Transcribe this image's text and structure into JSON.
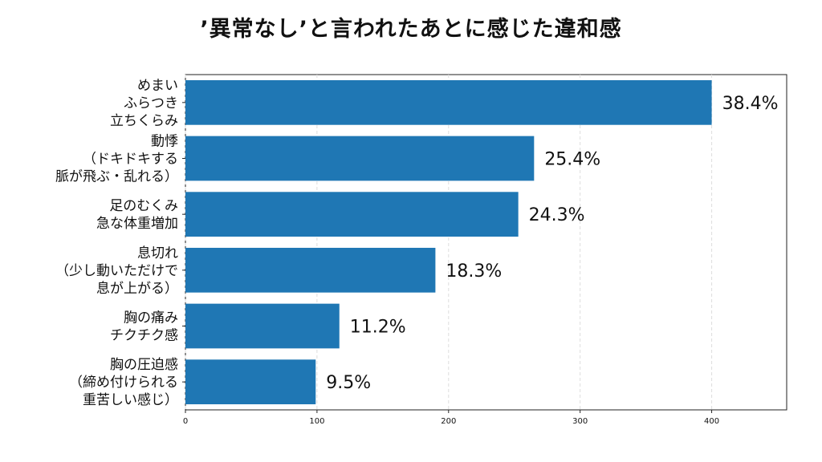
{
  "chart_data": {
    "type": "bar",
    "orientation": "horizontal",
    "title": "’異常なし’と言われたあとに感じた違和感",
    "categories": [
      [
        "めまい",
        "ふらつき",
        "立ちくらみ"
      ],
      [
        "動悸",
        "（ドキドキする",
        "脈が飛ぶ・乱れる）"
      ],
      [
        "足のむくみ",
        "急な体重増加"
      ],
      [
        "息切れ",
        "（少し動いただけで",
        "息が上がる）"
      ],
      [
        "胸の痛み",
        "チクチク感"
      ],
      [
        "胸の圧迫感",
        "（締め付けられる",
        "重苦しい感じ）"
      ]
    ],
    "values": [
      400,
      265,
      253,
      190,
      117,
      99
    ],
    "data_labels": [
      "38.4%",
      "25.4%",
      "24.3%",
      "18.3%",
      "11.2%",
      "9.5%"
    ],
    "xlim": [
      0,
      457
    ],
    "xticks": [
      0,
      100,
      200,
      300,
      400
    ],
    "grid": "x-dashed",
    "bar_color": "#1f77b4"
  }
}
